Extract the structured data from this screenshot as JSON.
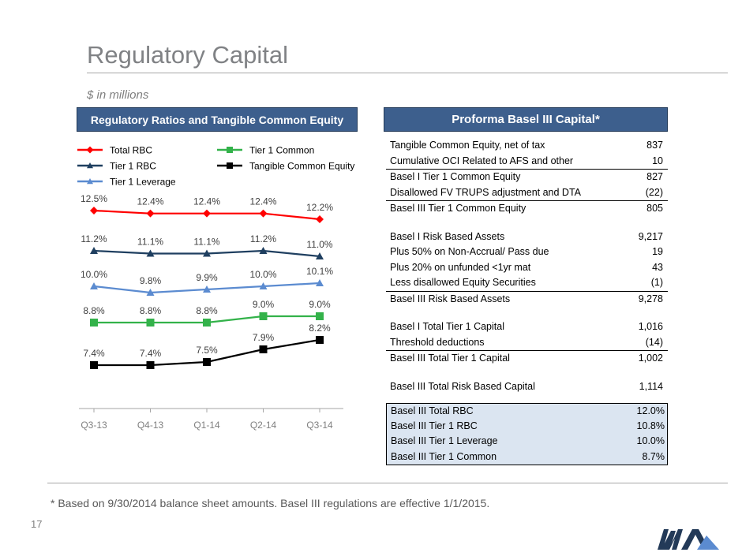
{
  "page": {
    "title": "Regulatory Capital",
    "subtitle": "$ in millions",
    "left_banner": "Regulatory Ratios and Tangible Common Equity",
    "right_banner": "Proforma Basel III Capital*",
    "footnote": "* Based on 9/30/2014 balance sheet amounts.  Basel III regulations are effective 1/1/2015.",
    "page_number": "17"
  },
  "chart_data": {
    "type": "line",
    "categories": [
      "Q3-13",
      "Q4-13",
      "Q1-14",
      "Q2-14",
      "Q3-14"
    ],
    "series": [
      {
        "name": "Total RBC",
        "values": [
          12.5,
          12.4,
          12.4,
          12.4,
          12.2
        ],
        "labels": [
          "12.5%",
          "12.4%",
          "12.4%",
          "12.4%",
          "12.2%"
        ],
        "color": "#ff0000",
        "marker": "diamond"
      },
      {
        "name": "Tier 1 RBC",
        "values": [
          11.2,
          11.1,
          11.1,
          11.2,
          11.0
        ],
        "labels": [
          "11.2%",
          "11.1%",
          "11.1%",
          "11.2%",
          "11.0%"
        ],
        "color": "#1f3f60",
        "marker": "triangle"
      },
      {
        "name": "Tier 1 Leverage",
        "values": [
          10.0,
          9.8,
          9.9,
          10.0,
          10.1
        ],
        "labels": [
          "10.0%",
          "9.8%",
          "9.9%",
          "10.0%",
          "10.1%"
        ],
        "color": "#5b8bd0",
        "marker": "triangle"
      },
      {
        "name": "Tier 1 Common",
        "values": [
          8.8,
          8.8,
          8.8,
          9.0,
          9.0
        ],
        "labels": [
          "8.8%",
          "8.8%",
          "8.8%",
          "9.0%",
          "9.0%"
        ],
        "color": "#33b24a",
        "marker": "square"
      },
      {
        "name": "Tangible Common Equity",
        "values": [
          7.4,
          7.4,
          7.5,
          7.9,
          8.2
        ],
        "labels": [
          "7.4%",
          "7.4%",
          "7.5%",
          "7.9%",
          "8.2%"
        ],
        "color": "#000000",
        "marker": "square"
      }
    ],
    "legend_position": "top",
    "grid": false
  },
  "capital_table": {
    "rows": [
      {
        "label": "Tangible Common Equity, net of tax",
        "value": "837",
        "rule": false
      },
      {
        "label": "Cumulative OCI Related to AFS and other",
        "value": "10",
        "rule": true
      },
      {
        "label": "Basel I Tier 1 Common Equity",
        "value": "827",
        "rule": false
      },
      {
        "label": "Disallowed FV TRUPS adjustment and DTA",
        "value": "(22)",
        "rule": true
      },
      {
        "label": "Basel III Tier 1 Common Equity",
        "value": "805",
        "rule": false
      },
      {
        "gap": true
      },
      {
        "label": "Basel I Risk Based Assets",
        "value": "9,217",
        "rule": false
      },
      {
        "label": "Plus 50% on Non-Accrual/ Pass due",
        "value": "19",
        "rule": false
      },
      {
        "label": "Plus 20% on unfunded <1yr mat",
        "value": "43",
        "rule": false
      },
      {
        "label": "Less disallowed Equity Securities",
        "value": "(1)",
        "rule": true
      },
      {
        "label": "Basel III Risk Based Assets",
        "value": "9,278",
        "rule": false
      },
      {
        "gap": true
      },
      {
        "label": "Basel I Total Tier 1 Capital",
        "value": "1,016",
        "rule": false
      },
      {
        "label": "Threshold deductions",
        "value": "(14)",
        "rule": true
      },
      {
        "label": "Basel III Total Tier 1 Capital",
        "value": "1,002",
        "rule": false
      },
      {
        "gap": true
      },
      {
        "label": "Basel III Total Risk Based Capital",
        "value": "1,114",
        "rule": false
      }
    ]
  },
  "summary_table": {
    "rows": [
      {
        "label": "Basel III Total RBC",
        "value": "12.0%"
      },
      {
        "label": "Basel III Tier 1 RBC",
        "value": "10.8%"
      },
      {
        "label": "Basel III Tier 1 Leverage",
        "value": "10.0%"
      },
      {
        "label": "Basel III Tier 1 Common",
        "value": "8.7%"
      }
    ]
  },
  "logo": {
    "icon": "company-logo-icon",
    "colors": [
      "#233a58",
      "#5b8bd0"
    ]
  }
}
